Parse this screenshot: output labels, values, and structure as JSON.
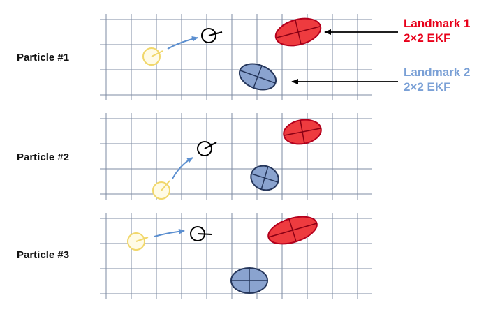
{
  "particles": [
    {
      "label": "Particle #1"
    },
    {
      "label": "Particle #2"
    },
    {
      "label": "Particle #3"
    }
  ],
  "landmarks": [
    {
      "name": "Landmark 1",
      "filter": "2×2 EKF",
      "color": "#e8001a",
      "fill": "#ee3b3f"
    },
    {
      "name": "Landmark 2",
      "filter": "2×2 EKF",
      "color": "#7aa0d6",
      "fill": "#8aa3cf"
    }
  ],
  "colors": {
    "grid": "#7e8ba3",
    "prior_pose": "#f1d76a",
    "current_pose": "#000000",
    "motion_arrow": "#5b8fd0",
    "pointer_arrow": "#000000"
  }
}
